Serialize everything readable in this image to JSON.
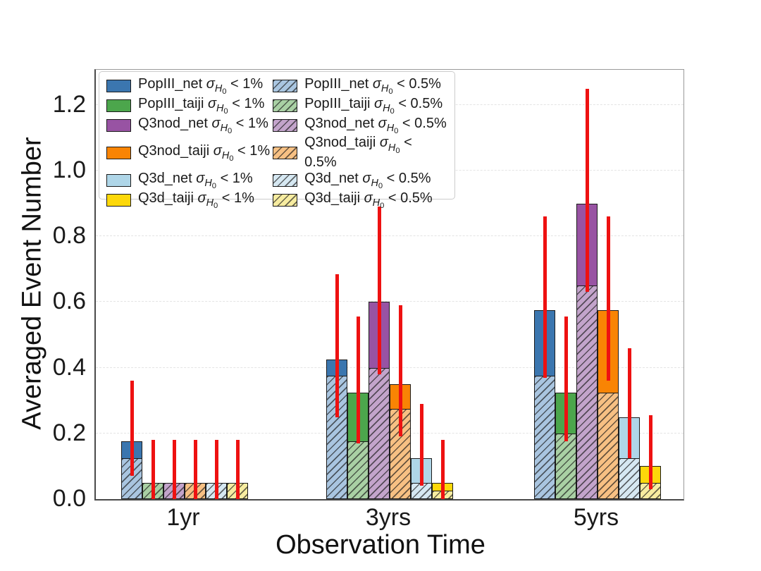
{
  "chart_data": {
    "type": "bar",
    "title": "",
    "xlabel": "Observation Time",
    "ylabel": "Averaged Event Number",
    "categories": [
      "1yr",
      "3yrs",
      "5yrs"
    ],
    "ylim": [
      0.0,
      1.307
    ],
    "yticks": [
      "0.0",
      "0.2",
      "0.4",
      "0.6",
      "0.8",
      "1.0",
      "1.2"
    ],
    "grid": "horizontal-dashed",
    "grid_color": "#e4e4e4",
    "legend_position": "upper-left",
    "error_bar_color": "#ee1111",
    "series": [
      {
        "id": "popIII_net",
        "label": "PopIII_net",
        "color": "#3b76af",
        "hatch_color": "#a9c5e0",
        "values_sigma_lt_1pct": [
          0.175,
          0.425,
          0.575
        ],
        "values_sigma_lt_0p5pct": [
          0.125,
          0.375,
          0.375
        ],
        "error_low": [
          0.07,
          0.25,
          0.37
        ],
        "error_high": [
          0.36,
          0.685,
          0.86
        ]
      },
      {
        "id": "popIII_taiji",
        "label": "PopIII_taiji",
        "color": "#4ca64c",
        "hatch_color": "#a9d0a4",
        "values_sigma_lt_1pct": [
          0.05,
          0.325,
          0.325
        ],
        "values_sigma_lt_0p5pct": [
          0.05,
          0.175,
          0.2
        ],
        "error_low": [
          0.0,
          0.17,
          0.175
        ],
        "error_high": [
          0.18,
          0.555,
          0.555
        ]
      },
      {
        "id": "q3nod_net",
        "label": "Q3nod_net",
        "color": "#9853a3",
        "hatch_color": "#c3a4cb",
        "values_sigma_lt_1pct": [
          0.05,
          0.6,
          0.9
        ],
        "values_sigma_lt_0p5pct": [
          0.05,
          0.4,
          0.65
        ],
        "error_low": [
          0.0,
          0.38,
          0.63
        ],
        "error_high": [
          0.18,
          0.89,
          1.25
        ]
      },
      {
        "id": "q3nod_taiji",
        "label": "Q3nod_taiji",
        "color": "#f98404",
        "hatch_color": "#f7c083",
        "values_sigma_lt_1pct": [
          0.05,
          0.35,
          0.575
        ],
        "values_sigma_lt_0p5pct": [
          0.05,
          0.275,
          0.325
        ],
        "error_low": [
          0.0,
          0.19,
          0.36
        ],
        "error_high": [
          0.18,
          0.59,
          0.86
        ]
      },
      {
        "id": "q3d_net",
        "label": "Q3d_net",
        "color": "#afd6e8",
        "hatch_color": "#d6e8f2",
        "values_sigma_lt_1pct": [
          0.05,
          0.125,
          0.25
        ],
        "values_sigma_lt_0p5pct": [
          0.05,
          0.05,
          0.125
        ],
        "error_low": [
          0.0,
          0.04,
          0.125
        ],
        "error_high": [
          0.18,
          0.29,
          0.46
        ]
      },
      {
        "id": "q3d_taiji",
        "label": "Q3d_taiji",
        "color": "#fdd80a",
        "hatch_color": "#f7eca0",
        "values_sigma_lt_1pct": [
          0.05,
          0.05,
          0.1
        ],
        "values_sigma_lt_0p5pct": [
          0.05,
          0.025,
          0.05
        ],
        "error_low": [
          0.0,
          0.0,
          0.03
        ],
        "error_high": [
          0.18,
          0.18,
          0.255
        ]
      }
    ],
    "legend": {
      "sigma": "σ",
      "sigma_sub": "H",
      "sigma_subsub": "0",
      "solid_suffix": "< 1%",
      "hatch_suffix": "< 0.5%"
    }
  }
}
